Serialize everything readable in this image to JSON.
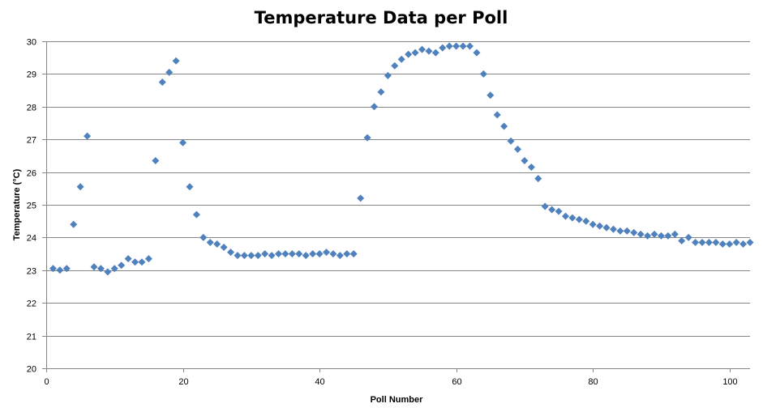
{
  "chart_data": {
    "type": "scatter",
    "title": "Temperature Data per Poll",
    "xlabel": "Poll Number",
    "ylabel": "Temperature (°C)",
    "xlim": [
      0,
      103
    ],
    "ylim": [
      20,
      30
    ],
    "x_ticks": [
      0,
      20,
      40,
      60,
      80,
      100
    ],
    "y_ticks": [
      20,
      21,
      22,
      23,
      24,
      25,
      26,
      27,
      28,
      29,
      30
    ],
    "grid": "horizontal",
    "marker": "diamond",
    "color": "#4F81BD",
    "series": [
      {
        "x": [
          1,
          2,
          3,
          4,
          5,
          6,
          7,
          8,
          9,
          10,
          11,
          12,
          13,
          14,
          15,
          16,
          17,
          18,
          19,
          20,
          21,
          22,
          23,
          24,
          25,
          26,
          27,
          28,
          29,
          30,
          31,
          32,
          33,
          34,
          35,
          36,
          37,
          38,
          39,
          40,
          41,
          42,
          43,
          44,
          45,
          46,
          47,
          48,
          49,
          50,
          51,
          52,
          53,
          54,
          55,
          56,
          57,
          58,
          59,
          60,
          61,
          62,
          63,
          64,
          65,
          66,
          67,
          68,
          69,
          70,
          71,
          72,
          73,
          74,
          75,
          76,
          77,
          78,
          79,
          80,
          81,
          82,
          83,
          84,
          85,
          86,
          87,
          88,
          89,
          90,
          91,
          92,
          93,
          94,
          95,
          96,
          97,
          98,
          99,
          100,
          101,
          102,
          103
        ],
        "y": [
          23.05,
          23.0,
          23.05,
          24.4,
          25.55,
          27.1,
          23.1,
          23.05,
          22.95,
          23.05,
          23.15,
          23.35,
          23.25,
          23.25,
          23.35,
          26.35,
          28.75,
          29.05,
          29.4,
          26.9,
          25.55,
          24.7,
          24.0,
          23.85,
          23.8,
          23.7,
          23.55,
          23.45,
          23.45,
          23.45,
          23.45,
          23.5,
          23.45,
          23.5,
          23.5,
          23.5,
          23.5,
          23.45,
          23.5,
          23.5,
          23.55,
          23.5,
          23.45,
          23.5,
          23.5,
          25.2,
          27.05,
          28.0,
          28.45,
          28.95,
          29.25,
          29.45,
          29.6,
          29.65,
          29.75,
          29.7,
          29.65,
          29.8,
          29.85,
          29.85,
          29.85,
          29.85,
          29.65,
          29.0,
          28.35,
          27.75,
          27.4,
          26.95,
          26.7,
          26.35,
          26.15,
          25.8,
          24.95,
          24.85,
          24.8,
          24.65,
          24.6,
          24.55,
          24.5,
          24.4,
          24.35,
          24.3,
          24.25,
          24.2,
          24.2,
          24.15,
          24.1,
          24.05,
          24.1,
          24.05,
          24.05,
          24.1,
          23.9,
          24.0,
          23.85,
          23.85,
          23.85,
          23.85,
          23.8,
          23.8,
          23.85,
          23.8,
          23.85
        ]
      }
    ]
  }
}
